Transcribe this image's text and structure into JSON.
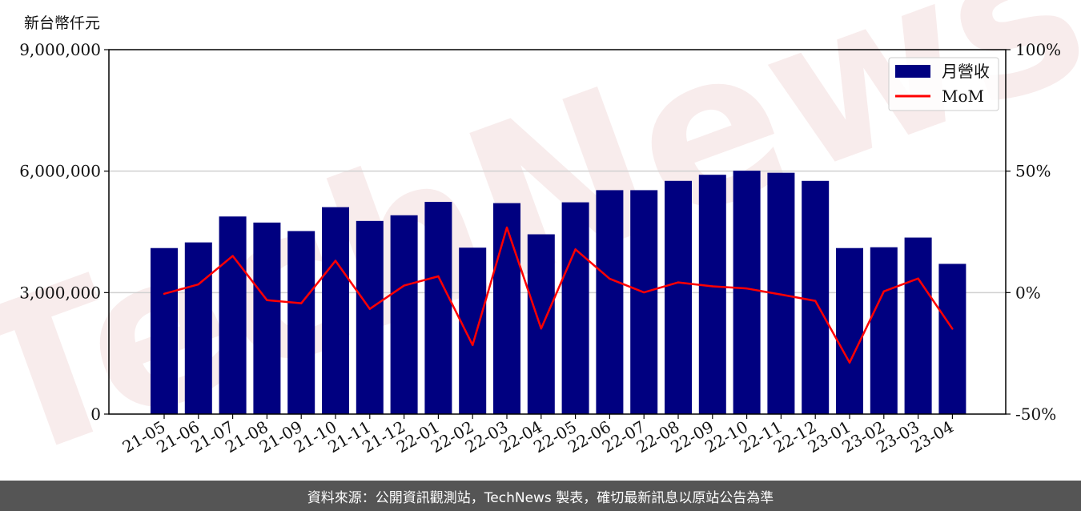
{
  "chart_data": {
    "type": "bar",
    "unit_label": "新台幣仟元",
    "categories": [
      "21-05",
      "21-06",
      "21-07",
      "21-08",
      "21-09",
      "21-10",
      "21-11",
      "21-12",
      "22-01",
      "22-02",
      "22-03",
      "22-04",
      "22-05",
      "22-06",
      "22-07",
      "22-08",
      "22-09",
      "22-10",
      "22-11",
      "22-12",
      "23-01",
      "23-02",
      "23-03",
      "23-04"
    ],
    "series": [
      {
        "name": "月營收",
        "axis": "left",
        "type": "bar",
        "color": "#000080",
        "values": [
          4100000,
          4240000,
          4880000,
          4730000,
          4520000,
          5110000,
          4770000,
          4910000,
          5240000,
          4110000,
          5210000,
          4440000,
          5230000,
          5530000,
          5530000,
          5760000,
          5910000,
          6010000,
          5960000,
          5760000,
          4100000,
          4120000,
          4360000,
          3710000
        ]
      },
      {
        "name": "MoM",
        "axis": "right",
        "type": "line",
        "color": "#ff0000",
        "values": [
          -0.5,
          3.4,
          15.1,
          -3.1,
          -4.4,
          13.1,
          -6.7,
          2.9,
          6.7,
          -21.6,
          26.8,
          -14.8,
          17.8,
          5.7,
          0.1,
          4.2,
          2.6,
          1.7,
          -0.8,
          -3.4,
          -28.8,
          0.5,
          5.8,
          -14.9
        ]
      }
    ],
    "y_left": {
      "ylim": [
        0,
        9000000
      ],
      "ticks": [
        "0",
        "3,000,000",
        "6,000,000",
        "9,000,000"
      ],
      "tick_values": [
        0,
        3000000,
        6000000,
        9000000
      ]
    },
    "y_right": {
      "ylim": [
        -50,
        100
      ],
      "ticks": [
        "-50%",
        "0%",
        "50%",
        "100%"
      ],
      "tick_values": [
        -50,
        0,
        50,
        100
      ]
    },
    "grid": "horizontal",
    "legend": "top-right",
    "watermark": "TechNews"
  },
  "footer": "資料來源：公開資訊觀測站，TechNews 製表，確切最新訊息以原站公告為準"
}
